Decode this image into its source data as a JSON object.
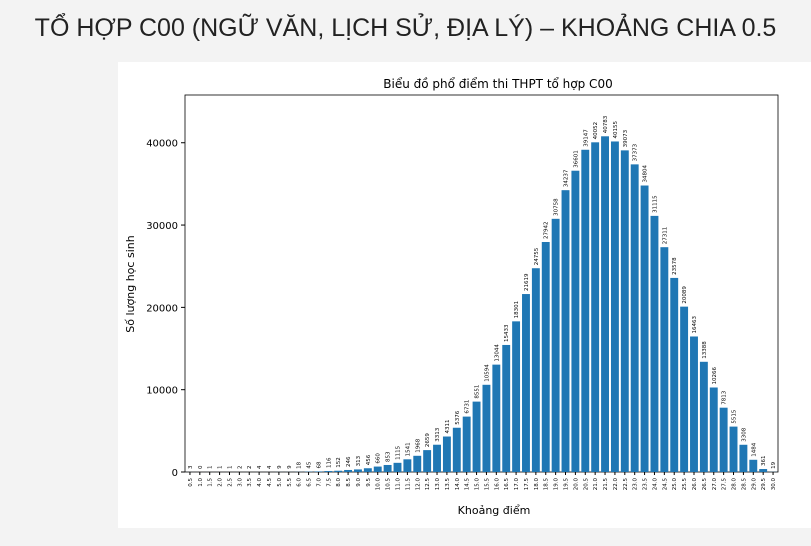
{
  "heading": "TỔ HỢP C00 (NGỮ VĂN, LỊCH SỬ, ĐỊA LÝ) – KHOẢNG CHIA 0.5",
  "chart_data": {
    "type": "bar",
    "title": "Biểu đồ phổ điểm thi THPT tổ hợp C00",
    "x_label": "Khoảng điểm",
    "y_label": "Số lượng học sinh",
    "categories": [
      "0.5",
      "1.0",
      "1.5",
      "2.0",
      "2.5",
      "3.0",
      "3.5",
      "4.0",
      "4.5",
      "5.0",
      "5.5",
      "6.0",
      "6.5",
      "7.0",
      "7.5",
      "8.0",
      "8.5",
      "9.0",
      "9.5",
      "10.0",
      "10.5",
      "11.0",
      "11.5",
      "12.0",
      "12.5",
      "13.0",
      "13.5",
      "14.0",
      "14.5",
      "15.0",
      "15.5",
      "16.0",
      "16.5",
      "17.0",
      "17.5",
      "18.0",
      "18.5",
      "19.0",
      "19.5",
      "20.0",
      "20.5",
      "21.0",
      "21.5",
      "22.0",
      "22.5",
      "23.0",
      "23.5",
      "24.0",
      "24.5",
      "25.0",
      "25.5",
      "26.0",
      "26.5",
      "27.0",
      "27.5",
      "28.0",
      "28.5",
      "29.0",
      "29.5",
      "30.0"
    ],
    "values": [
      3,
      0,
      1,
      1,
      1,
      2,
      2,
      4,
      4,
      9,
      9,
      18,
      45,
      68,
      116,
      152,
      246,
      313,
      456,
      660,
      853,
      1115,
      1541,
      1968,
      2659,
      3313,
      4311,
      5376,
      6731,
      8551,
      10594,
      13044,
      15433,
      18301,
      21619,
      24755,
      27942,
      30758,
      34237,
      36601,
      39147,
      40052,
      40783,
      40155,
      39073,
      37373,
      34804,
      31115,
      27311,
      23578,
      20089,
      16463,
      13388,
      10266,
      7813,
      5515,
      3308,
      1484,
      361,
      19
    ],
    "color": "#1f77b4",
    "ylim": [
      0,
      45800
    ],
    "yticks": [
      0,
      10000,
      20000,
      30000,
      40000
    ]
  }
}
